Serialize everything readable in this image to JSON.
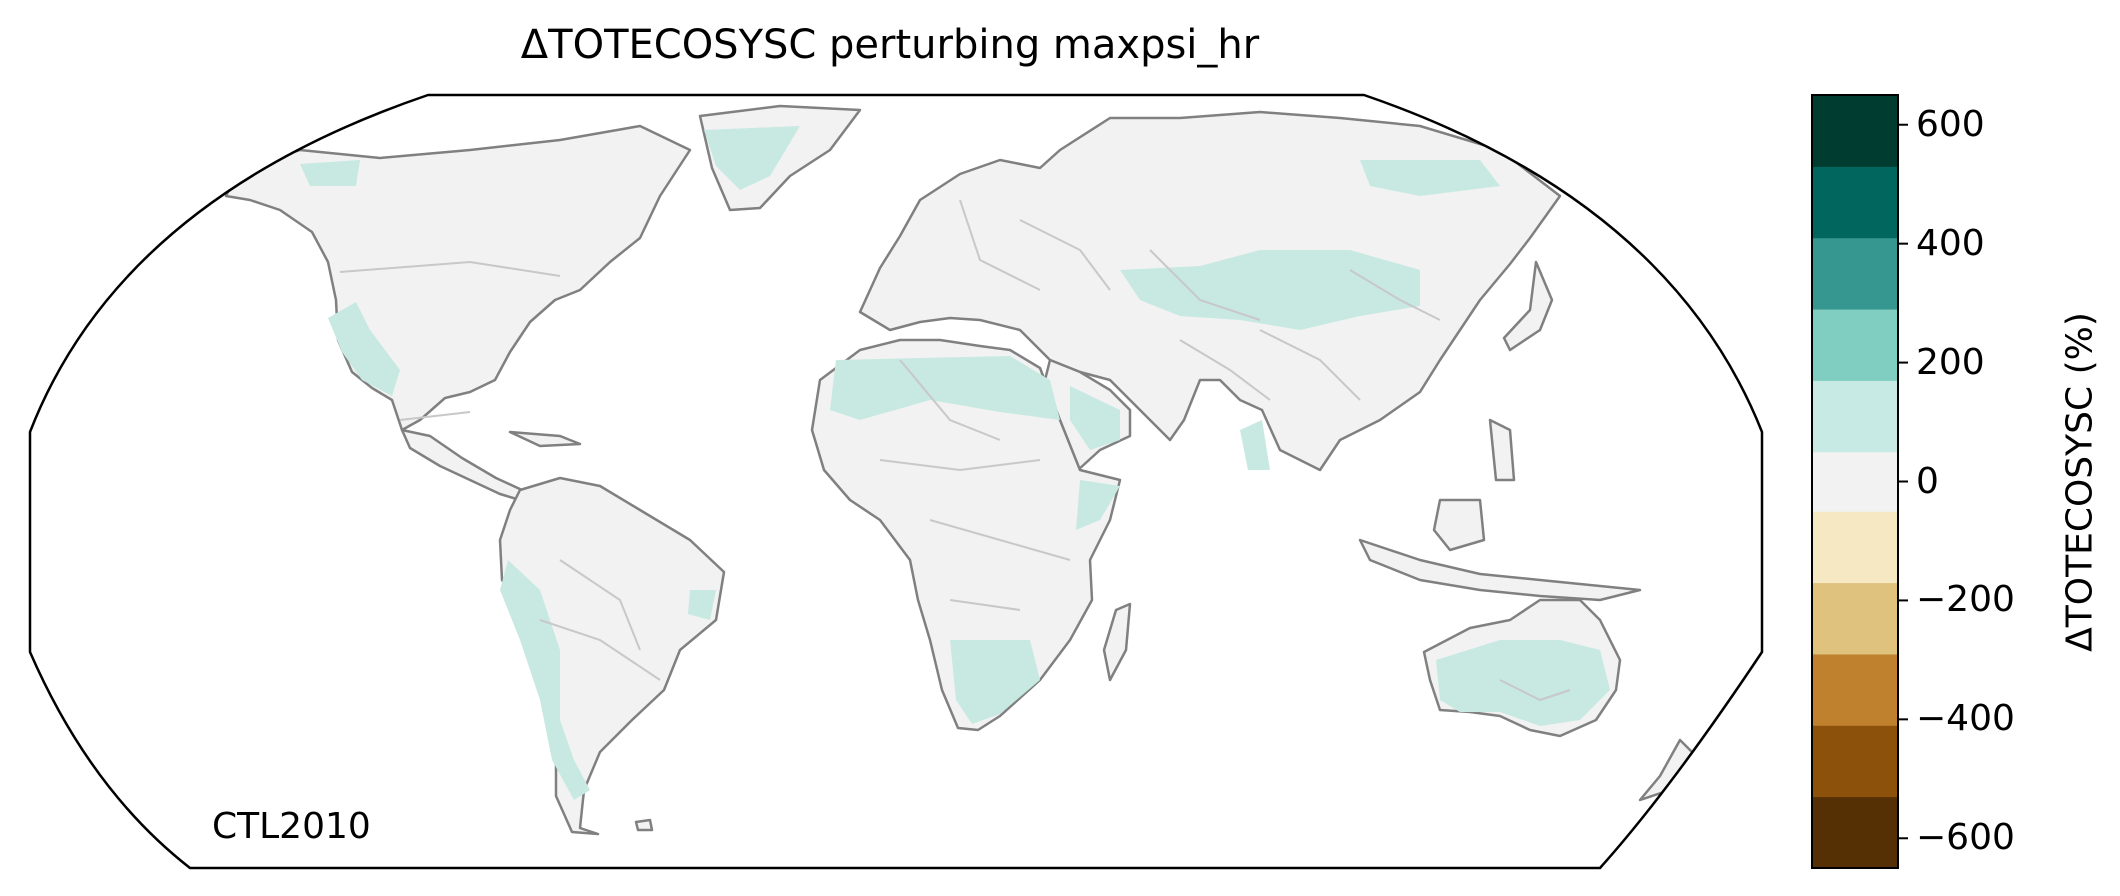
{
  "title": "ΔTOTECOSYSC perturbing maxpsi_hr",
  "annotation": "CTL2010",
  "colors": {
    "land": "#f2f2f2",
    "coast": "#808080",
    "border": "#c8c8c8",
    "frame": "#000000",
    "highlight": "#c7e9e2"
  },
  "colorbar": {
    "label": "ΔTOTECOSYSC (%)",
    "range": [
      -650,
      650
    ],
    "boundaries": [
      -650,
      -530,
      -410,
      -290,
      -170,
      -50,
      50,
      170,
      290,
      410,
      530,
      650
    ],
    "colors": [
      "#553005",
      "#8c510a",
      "#bf812d",
      "#dfc27d",
      "#f6e8c3",
      "#f2f2f2",
      "#c7eae5",
      "#80cdc1",
      "#35978f",
      "#01665e",
      "#003c30"
    ],
    "ticks": [
      600,
      400,
      200,
      0,
      -200,
      -400,
      -600
    ],
    "tick_labels": [
      "600",
      "400",
      "200",
      "0",
      "−200",
      "−400",
      "−600"
    ]
  },
  "chart_data": {
    "type": "heatmap",
    "title": "ΔTOTECOSYSC perturbing maxpsi_hr",
    "projection": "Robinson",
    "colorbar_label": "ΔTOTECOSYSC (%)",
    "color_range": [
      -650,
      650
    ],
    "note": "CTL2010"
  }
}
